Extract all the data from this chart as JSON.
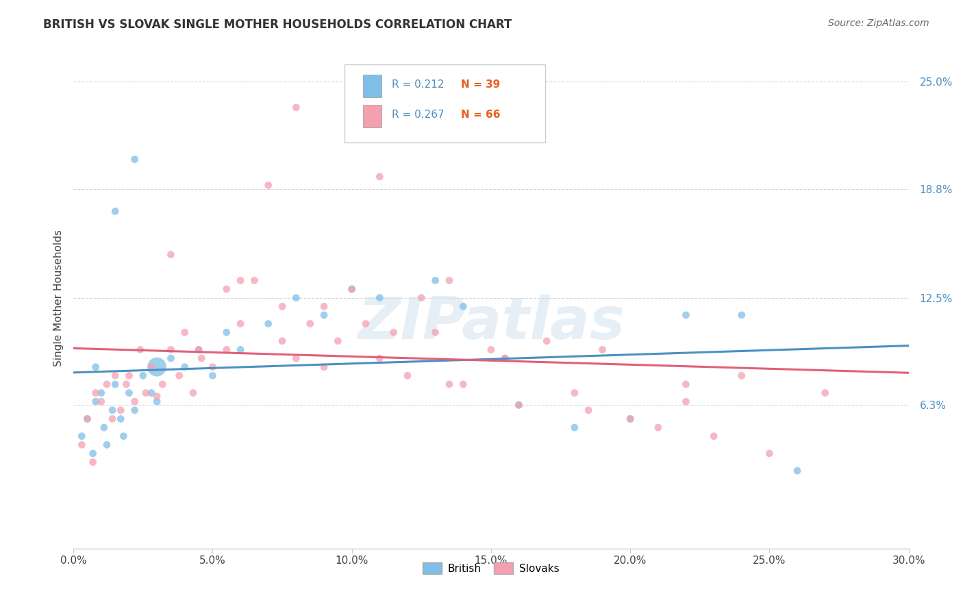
{
  "title": "BRITISH VS SLOVAK SINGLE MOTHER HOUSEHOLDS CORRELATION CHART",
  "source_text": "Source: ZipAtlas.com",
  "ylabel": "Single Mother Households",
  "xlabel_ticks": [
    "0.0%",
    "5.0%",
    "10.0%",
    "15.0%",
    "20.0%",
    "25.0%",
    "30.0%"
  ],
  "xlabel_vals": [
    0.0,
    5.0,
    10.0,
    15.0,
    20.0,
    25.0,
    30.0
  ],
  "ytick_labels": [
    "6.3%",
    "12.5%",
    "18.8%",
    "25.0%"
  ],
  "ytick_vals": [
    6.3,
    12.5,
    18.8,
    25.0
  ],
  "xlim": [
    0.0,
    30.0
  ],
  "ylim": [
    -2.0,
    27.0
  ],
  "british_R": 0.212,
  "british_N": 39,
  "slovak_R": 0.267,
  "slovak_N": 66,
  "british_color": "#7fbfe8",
  "slovak_color": "#f4a0b0",
  "british_line_color": "#4a90c4",
  "slovak_line_color": "#e0607a",
  "legend_label_british": "British",
  "legend_label_slovak": "Slovaks",
  "watermark": "ZIPatlas",
  "british_x": [
    0.3,
    0.5,
    0.7,
    0.8,
    1.0,
    1.1,
    1.2,
    1.4,
    1.5,
    1.7,
    1.8,
    2.0,
    2.2,
    2.5,
    2.8,
    3.0,
    3.5,
    4.0,
    4.5,
    5.0,
    5.5,
    6.0,
    7.0,
    8.0,
    9.0,
    10.0,
    11.0,
    13.0,
    14.0,
    16.0,
    18.0,
    20.0,
    22.0,
    24.0,
    26.0,
    0.8,
    1.5,
    2.2,
    3.0
  ],
  "british_y": [
    4.5,
    5.5,
    3.5,
    6.5,
    7.0,
    5.0,
    4.0,
    6.0,
    7.5,
    5.5,
    4.5,
    7.0,
    6.0,
    8.0,
    7.0,
    6.5,
    9.0,
    8.5,
    9.5,
    8.0,
    10.5,
    9.5,
    11.0,
    12.5,
    11.5,
    13.0,
    12.5,
    13.5,
    12.0,
    6.3,
    5.0,
    5.5,
    11.5,
    11.5,
    2.5,
    8.5,
    17.5,
    20.5,
    8.5
  ],
  "british_sizes": [
    60,
    60,
    60,
    60,
    60,
    60,
    60,
    60,
    60,
    60,
    60,
    60,
    60,
    60,
    60,
    60,
    60,
    60,
    60,
    60,
    60,
    60,
    60,
    60,
    60,
    60,
    60,
    60,
    60,
    60,
    60,
    60,
    60,
    60,
    60,
    60,
    60,
    60,
    400
  ],
  "slovak_x": [
    0.3,
    0.5,
    0.7,
    0.8,
    1.0,
    1.2,
    1.4,
    1.5,
    1.7,
    1.9,
    2.0,
    2.2,
    2.4,
    2.6,
    2.8,
    3.0,
    3.2,
    3.5,
    3.8,
    4.0,
    4.3,
    4.6,
    5.0,
    5.5,
    6.0,
    6.5,
    7.0,
    7.5,
    8.0,
    8.5,
    9.0,
    9.5,
    10.0,
    10.5,
    11.0,
    11.5,
    12.0,
    12.5,
    13.0,
    13.5,
    14.0,
    15.0,
    15.5,
    16.0,
    17.0,
    18.0,
    19.0,
    20.0,
    21.0,
    22.0,
    23.0,
    24.0,
    25.0,
    27.0,
    4.5,
    6.0,
    7.5,
    9.0,
    11.0,
    13.5,
    15.5,
    18.5,
    22.0,
    3.5,
    5.5,
    8.0
  ],
  "slovak_y": [
    4.0,
    5.5,
    3.0,
    7.0,
    6.5,
    7.5,
    5.5,
    8.0,
    6.0,
    7.5,
    8.0,
    6.5,
    9.5,
    7.0,
    8.5,
    6.8,
    7.5,
    9.5,
    8.0,
    10.5,
    7.0,
    9.0,
    8.5,
    9.5,
    11.0,
    13.5,
    19.0,
    12.0,
    9.0,
    11.0,
    12.0,
    10.0,
    13.0,
    11.0,
    9.0,
    10.5,
    8.0,
    12.5,
    10.5,
    13.5,
    7.5,
    9.5,
    9.0,
    6.3,
    10.0,
    7.0,
    9.5,
    5.5,
    5.0,
    6.5,
    4.5,
    8.0,
    3.5,
    7.0,
    9.5,
    13.5,
    10.0,
    8.5,
    19.5,
    7.5,
    9.0,
    6.0,
    7.5,
    15.0,
    13.0,
    23.5
  ],
  "slovak_sizes": [
    60,
    60,
    60,
    60,
    60,
    60,
    60,
    60,
    60,
    60,
    60,
    60,
    60,
    60,
    60,
    60,
    60,
    60,
    60,
    60,
    60,
    60,
    60,
    60,
    60,
    60,
    60,
    60,
    60,
    60,
    60,
    60,
    60,
    60,
    60,
    60,
    60,
    60,
    60,
    60,
    60,
    60,
    60,
    60,
    60,
    60,
    60,
    60,
    60,
    60,
    60,
    60,
    60,
    60,
    60,
    60,
    60,
    60,
    60,
    60,
    60,
    60,
    60,
    60,
    60,
    60
  ]
}
